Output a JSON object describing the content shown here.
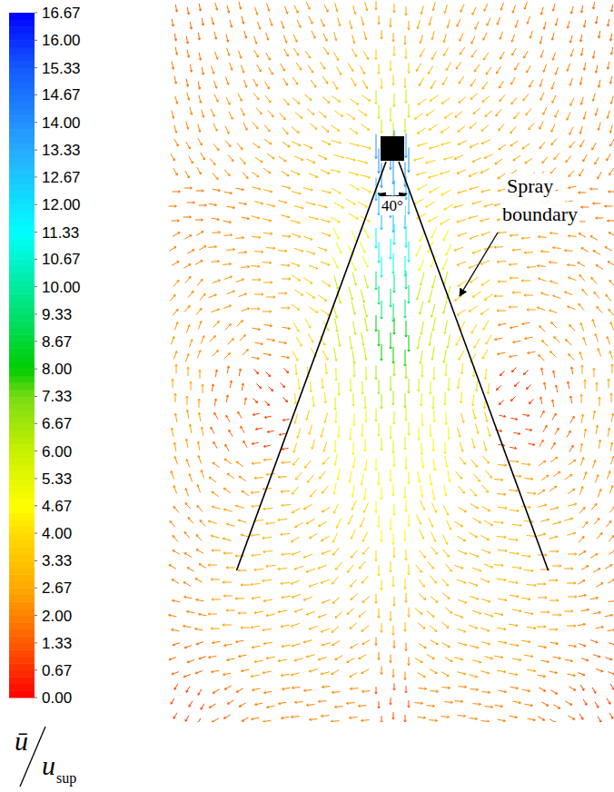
{
  "chart_data": {
    "type": "vector_field",
    "colorbar": {
      "title": {
        "numerator": "ū",
        "denominator": "u",
        "subscript": "sup"
      },
      "range": [
        0,
        16.67
      ],
      "ticks": [
        {
          "value": 0,
          "label": "0.00"
        },
        {
          "value": 0.67,
          "label": "0.67"
        },
        {
          "value": 1.33,
          "label": "1.33"
        },
        {
          "value": 2,
          "label": "2.00"
        },
        {
          "value": 2.67,
          "label": "2.67"
        },
        {
          "value": 3.33,
          "label": "3.33"
        },
        {
          "value": 4,
          "label": "4.00"
        },
        {
          "value": 4.67,
          "label": "4.67"
        },
        {
          "value": 5.33,
          "label": "5.33"
        },
        {
          "value": 6,
          "label": "6.00"
        },
        {
          "value": 6.67,
          "label": "6.67"
        },
        {
          "value": 7.33,
          "label": "7.33"
        },
        {
          "value": 8,
          "label": "8.00"
        },
        {
          "value": 8.67,
          "label": "8.67"
        },
        {
          "value": 9.33,
          "label": "9.33"
        },
        {
          "value": 10,
          "label": "10.00"
        },
        {
          "value": 10.67,
          "label": "10.67"
        },
        {
          "value": 11.33,
          "label": "11.33"
        },
        {
          "value": 12,
          "label": "12.00"
        },
        {
          "value": 12.67,
          "label": "12.67"
        },
        {
          "value": 13.33,
          "label": "13.33"
        },
        {
          "value": 14,
          "label": "14.00"
        },
        {
          "value": 14.67,
          "label": "14.67"
        },
        {
          "value": 15.33,
          "label": "15.33"
        },
        {
          "value": 16,
          "label": "16.00"
        },
        {
          "value": 16.67,
          "label": "16.67"
        }
      ]
    },
    "vectors": {
      "angles": [
        [
          80,
          75,
          70,
          65,
          75,
          90,
          105,
          115,
          110,
          105,
          100
        ],
        [
          80,
          70,
          60,
          55,
          60,
          90,
          120,
          125,
          120,
          110,
          100
        ],
        [
          75,
          65,
          50,
          40,
          35,
          90,
          145,
          140,
          130,
          115,
          105
        ],
        [
          60,
          50,
          35,
          25,
          15,
          90,
          165,
          155,
          145,
          130,
          120
        ],
        [
          0,
          10,
          15,
          15,
          30,
          90,
          150,
          165,
          165,
          170,
          180
        ],
        [
          -30,
          -5,
          5,
          20,
          65,
          90,
          115,
          160,
          175,
          185,
          210
        ],
        [
          -50,
          -20,
          0,
          35,
          75,
          90,
          105,
          145,
          180,
          200,
          230
        ],
        [
          -70,
          -45,
          10,
          60,
          80,
          90,
          100,
          120,
          170,
          225,
          250
        ],
        [
          -90,
          -80,
          45,
          85,
          88,
          90,
          92,
          95,
          135,
          260,
          270
        ],
        [
          -100,
          -120,
          170,
          105,
          92,
          90,
          88,
          75,
          10,
          300,
          280
        ],
        [
          -110,
          -145,
          175,
          130,
          100,
          90,
          80,
          50,
          5,
          325,
          290
        ],
        [
          -130,
          -165,
          175,
          150,
          115,
          90,
          65,
          30,
          5,
          345,
          310
        ],
        [
          -150,
          180,
          175,
          160,
          130,
          90,
          50,
          20,
          5,
          0,
          330
        ],
        [
          -170,
          180,
          170,
          160,
          140,
          90,
          40,
          20,
          10,
          0,
          350
        ],
        [
          160,
          170,
          170,
          165,
          150,
          90,
          30,
          15,
          10,
          10,
          20
        ],
        [
          120,
          150,
          170,
          175,
          175,
          90,
          5,
          5,
          10,
          30,
          60
        ]
      ],
      "magnitudes": [
        [
          1.5,
          1.8,
          2,
          2.2,
          2.5,
          2.5,
          2.5,
          2.2,
          2,
          1.8,
          1.5
        ],
        [
          1.8,
          2,
          2.2,
          2.5,
          3,
          3.5,
          3,
          2.5,
          2.2,
          2,
          1.8
        ],
        [
          2,
          2.2,
          2.5,
          2.8,
          3.5,
          6,
          3.5,
          2.8,
          2.5,
          2.2,
          2
        ],
        [
          2,
          2.2,
          2.5,
          3,
          3.5,
          14,
          3.5,
          3,
          2.5,
          2.2,
          2
        ],
        [
          1.8,
          2,
          2.5,
          3,
          4,
          13,
          4,
          3,
          2.5,
          2,
          1.8
        ],
        [
          2,
          2.2,
          2.5,
          3,
          5,
          11,
          5,
          3,
          2.5,
          2.2,
          2
        ],
        [
          2.2,
          2.3,
          2.5,
          3.5,
          6,
          9.5,
          6,
          3.5,
          2.5,
          2.3,
          2.2
        ],
        [
          2.3,
          2.2,
          2,
          3.8,
          6,
          8,
          6,
          3.8,
          2,
          2.2,
          2.3
        ],
        [
          2.5,
          1.5,
          0.8,
          4,
          5.5,
          6.5,
          5.5,
          4,
          0.8,
          1.5,
          2.5
        ],
        [
          2.5,
          1.5,
          1,
          3.5,
          5,
          5.5,
          5,
          3.5,
          1,
          1.5,
          2.5
        ],
        [
          2.2,
          2.2,
          2.5,
          3.2,
          4.5,
          5,
          4.5,
          3.2,
          2.5,
          2.2,
          2.2
        ],
        [
          2,
          2.5,
          3,
          3,
          3.8,
          4.5,
          3.8,
          3,
          3,
          2.5,
          2
        ],
        [
          2,
          2.5,
          3,
          3,
          3.2,
          3.8,
          3.2,
          3,
          3,
          2.5,
          2
        ],
        [
          2,
          2.5,
          2.8,
          2.8,
          2.8,
          3,
          2.8,
          2.8,
          2.8,
          2.5,
          2
        ],
        [
          1.5,
          2,
          2.5,
          2.5,
          2.5,
          2,
          2.5,
          2.5,
          2.5,
          2,
          1.5
        ],
        [
          1,
          1.5,
          2,
          2,
          2,
          1.2,
          2,
          2,
          2,
          1.5,
          1
        ]
      ]
    },
    "cone_angle": {
      "value": 40,
      "label": "40°"
    },
    "annotations": [
      "Spray boundary"
    ]
  }
}
